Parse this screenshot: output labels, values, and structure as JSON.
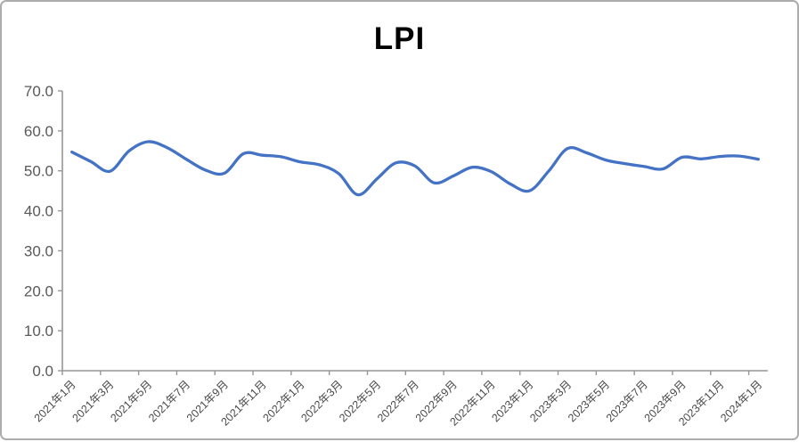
{
  "chart_data": {
    "type": "line",
    "title": "LPI",
    "series_name": "LPI",
    "x": [
      "2021年1月",
      "2021年2月",
      "2021年3月",
      "2021年4月",
      "2021年5月",
      "2021年6月",
      "2021年7月",
      "2021年8月",
      "2021年9月",
      "2021年10月",
      "2021年11月",
      "2021年12月",
      "2022年1月",
      "2022年2月",
      "2022年3月",
      "2022年4月",
      "2022年5月",
      "2022年6月",
      "2022年7月",
      "2022年8月",
      "2022年9月",
      "2022年10月",
      "2022年11月",
      "2022年12月",
      "2023年1月",
      "2023年2月",
      "2023年3月",
      "2023年4月",
      "2023年5月",
      "2023年6月",
      "2023年7月",
      "2023年8月",
      "2023年9月",
      "2023年10月",
      "2023年11月",
      "2023年12月",
      "2024年1月"
    ],
    "values": [
      54.7,
      52.3,
      49.9,
      55.0,
      57.3,
      55.8,
      52.9,
      50.2,
      49.4,
      54.3,
      53.9,
      53.5,
      52.2,
      51.5,
      49.3,
      44.0,
      48.0,
      52.0,
      51.2,
      47.0,
      48.7,
      50.9,
      49.8,
      46.7,
      45.0,
      49.9,
      55.6,
      54.5,
      52.7,
      51.8,
      51.1,
      50.5,
      53.4,
      53.0,
      53.6,
      53.7,
      52.9
    ],
    "visible_x_tick_labels": [
      "2021年1月",
      "2021年3月",
      "2021年5月",
      "2021年7月",
      "2021年9月",
      "2021年11月",
      "2022年1月",
      "2022年3月",
      "2022年5月",
      "2022年7月",
      "2022年9月",
      "2022年11月",
      "2023年1月",
      "2023年3月",
      "2023年5月",
      "2023年7月",
      "2023年9月",
      "2023年11月",
      "2024年1月"
    ],
    "x_label_every": 2,
    "y_tick_labels": [
      "0.0",
      "10.0",
      "20.0",
      "30.0",
      "40.0",
      "50.0",
      "60.0",
      "70.0"
    ],
    "ylim": [
      0,
      70
    ],
    "y_tick_step": 10,
    "grid": "off",
    "legend": "none",
    "smoothed": true,
    "colors": {
      "line": "#4472C4",
      "axis": "#969696",
      "y_label": "#595959",
      "x_label": "#4a4a4a",
      "title": "#000000",
      "background": "#ffffff",
      "frame_border": "#acacac"
    }
  }
}
